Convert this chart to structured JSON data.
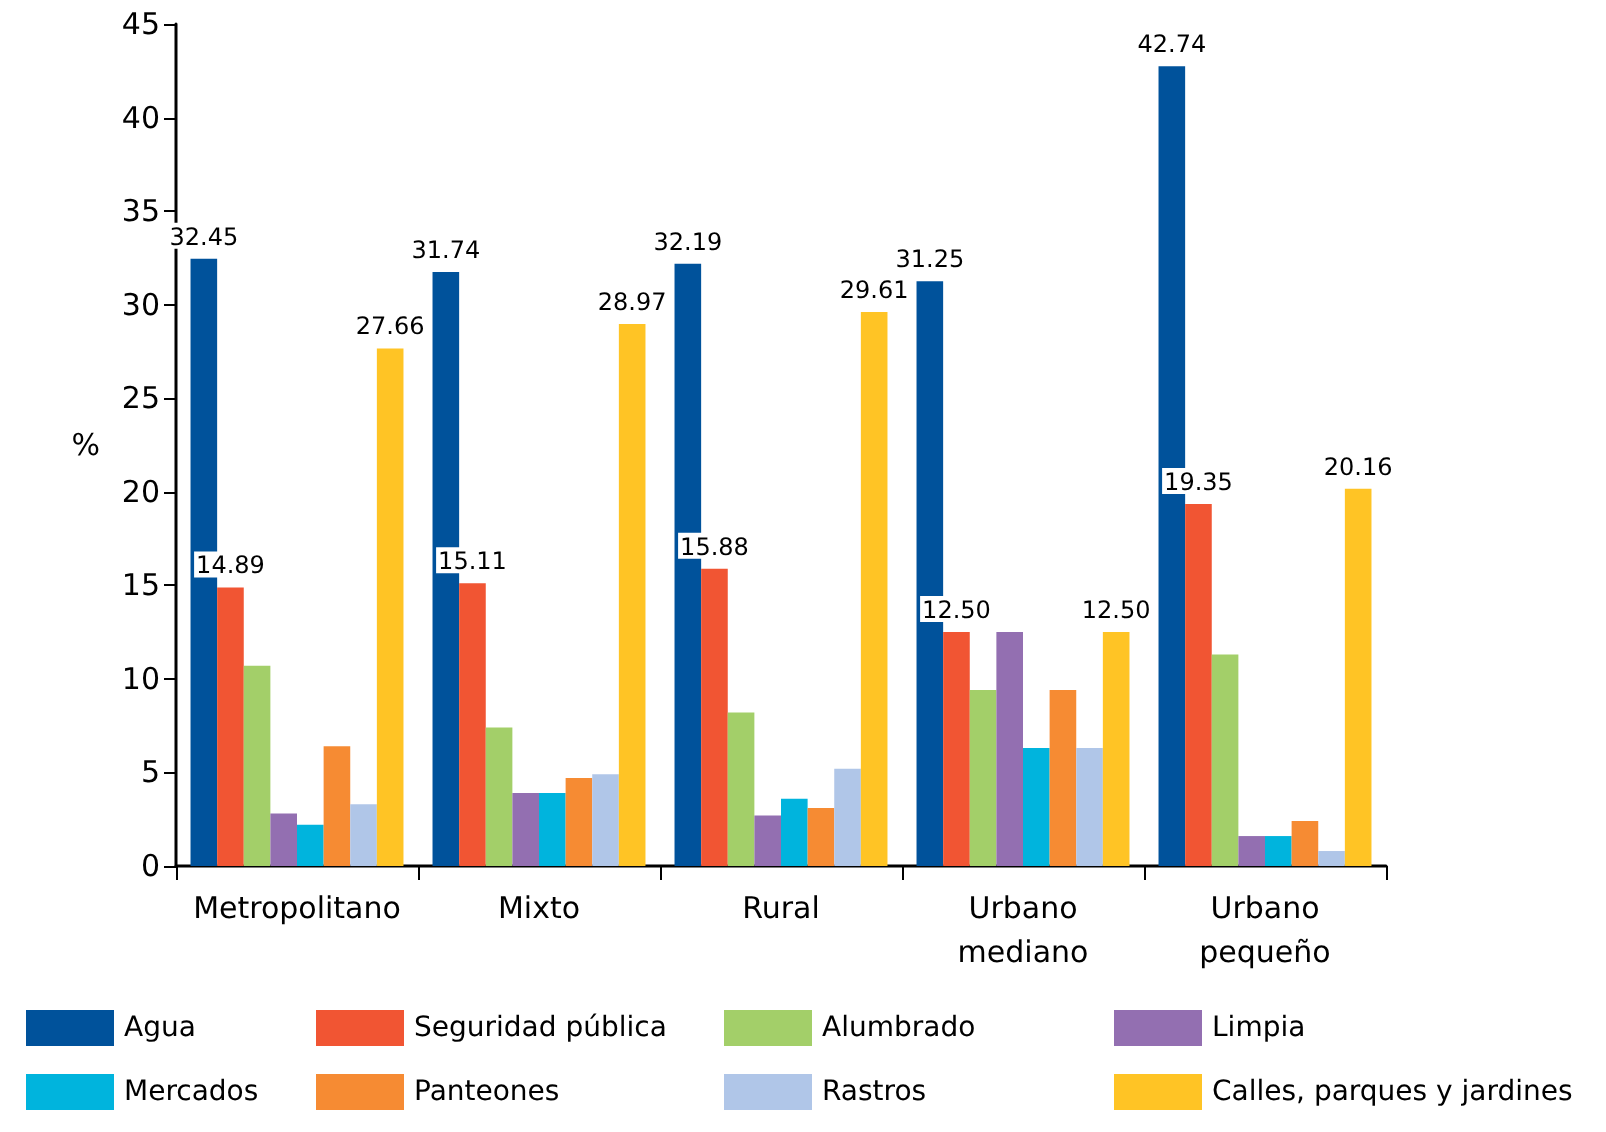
{
  "chart_data": {
    "type": "bar",
    "ylabel": "%",
    "categories": [
      "Metropolitano",
      "Mixto",
      "Rural",
      "Urbano\nmediano",
      "Urbano\npequeño"
    ],
    "series": [
      {
        "name": "Agua",
        "color": "#00529b",
        "values": [
          32.45,
          31.74,
          32.19,
          31.25,
          42.74
        ],
        "value_labels": [
          "32.45",
          "31.74",
          "32.19",
          "31.25",
          "42.74"
        ]
      },
      {
        "name": "Seguridad pública",
        "color": "#f15533",
        "values": [
          14.89,
          15.11,
          15.88,
          12.5,
          19.35
        ],
        "value_labels": [
          "14.89",
          "15.11",
          "15.88",
          "12.50",
          "19.35"
        ]
      },
      {
        "name": "Alumbrado",
        "color": "#a3cf69",
        "values": [
          10.7,
          7.4,
          8.2,
          9.4,
          11.3
        ]
      },
      {
        "name": "Limpia",
        "color": "#936fb1",
        "values": [
          2.8,
          3.9,
          2.7,
          12.5,
          1.6
        ]
      },
      {
        "name": "Mercados",
        "color": "#00b4dd",
        "values": [
          2.2,
          3.9,
          3.6,
          6.3,
          1.6
        ]
      },
      {
        "name": "Panteones",
        "color": "#f68b33",
        "values": [
          6.4,
          4.7,
          3.1,
          9.4,
          2.4
        ]
      },
      {
        "name": "Rastros",
        "color": "#b0c6e8",
        "values": [
          3.3,
          4.9,
          5.2,
          6.3,
          0.8
        ]
      },
      {
        "name": "Calles, parques y jardines",
        "color": "#ffc425",
        "values": [
          27.66,
          28.97,
          29.61,
          12.5,
          20.16
        ],
        "value_labels": [
          "27.66",
          "28.97",
          "29.61",
          "12.50",
          "20.16"
        ]
      }
    ],
    "ylim": [
      0,
      45
    ],
    "yticks": [
      0,
      5,
      10,
      15,
      20,
      25,
      30,
      35,
      40,
      45
    ],
    "grid": false,
    "legend": "bottom"
  }
}
